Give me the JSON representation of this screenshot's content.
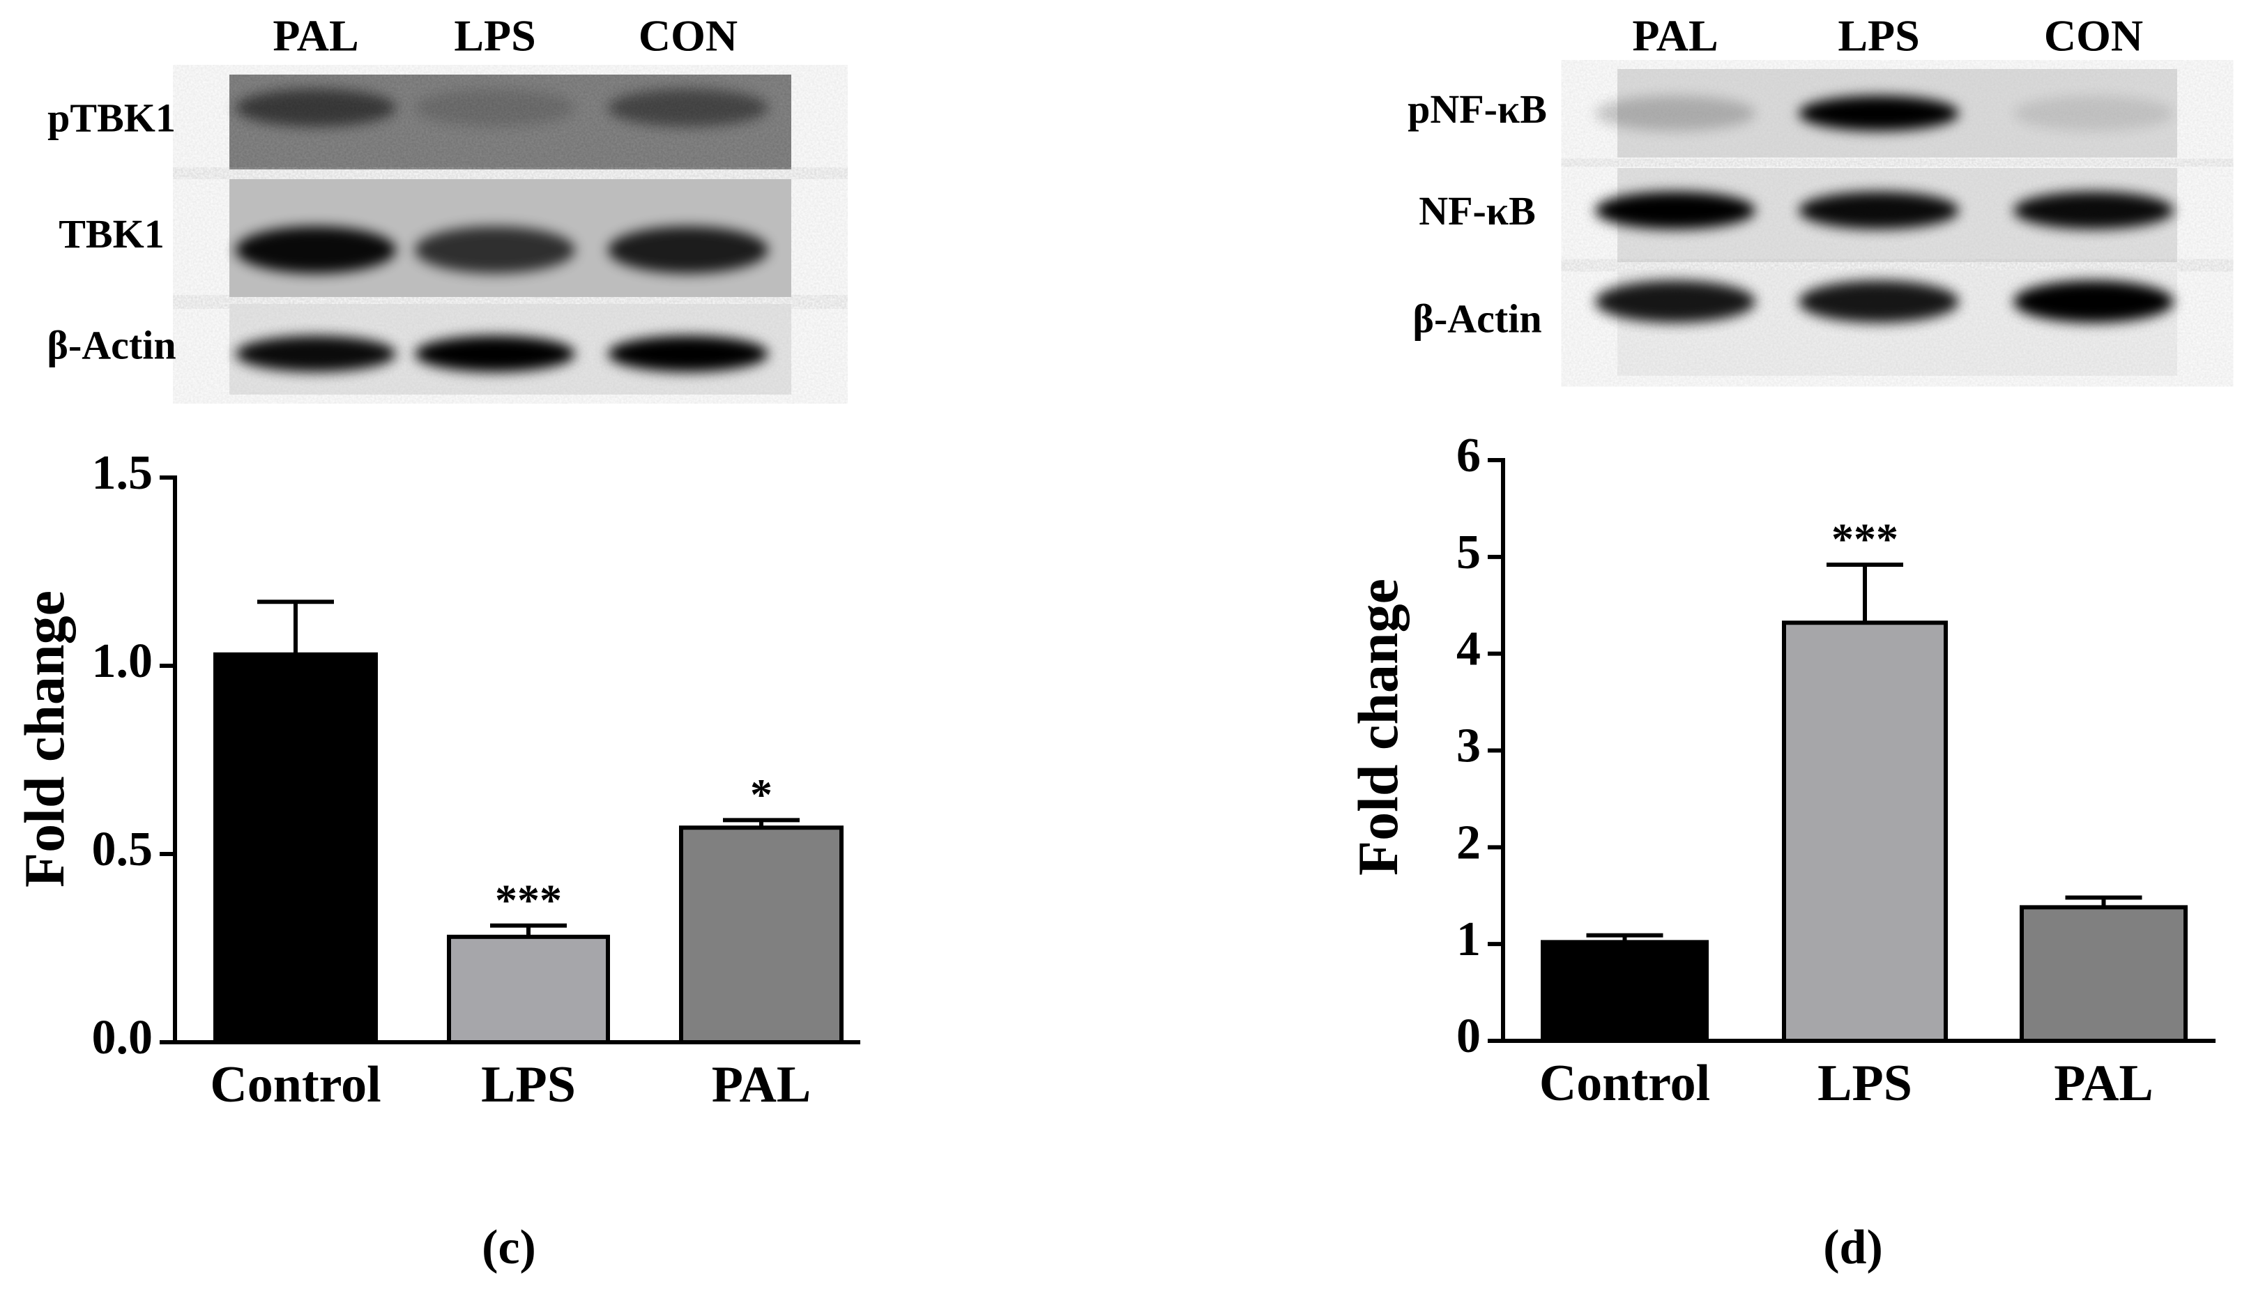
{
  "chart_data": [
    {
      "type": "bar",
      "panel_label": "(c)",
      "blot": {
        "lanes": [
          "PAL",
          "LPS",
          "CON"
        ],
        "rows": [
          "pTBK1",
          "TBK1",
          "β-Actin"
        ]
      },
      "y_label": "Fold change",
      "categories": [
        "Control",
        "LPS",
        "PAL"
      ],
      "values": [
        1.03,
        0.28,
        0.57
      ],
      "errors": [
        0.14,
        0.03,
        0.02
      ],
      "significance": [
        null,
        "***",
        "*"
      ],
      "colors": [
        "#000000",
        "#a6a6aa",
        "#808080"
      ],
      "ylim": [
        0,
        1.5
      ],
      "yticks": [
        {
          "value": 0,
          "label": "0.0"
        },
        {
          "value": 0.5,
          "label": "0.5"
        },
        {
          "value": 1,
          "label": "1.0"
        },
        1.5
      ]
    },
    {
      "type": "bar",
      "panel_label": "(d)",
      "blot": {
        "lanes": [
          "PAL",
          "LPS",
          "CON"
        ],
        "rows": [
          "pNF-κB",
          "NF-κB",
          "β-Actin"
        ]
      },
      "y_label": "Fold change",
      "categories": [
        "Control",
        "LPS",
        "PAL"
      ],
      "values": [
        1.02,
        4.32,
        1.38
      ],
      "errors": [
        0.07,
        0.6,
        0.1
      ],
      "significance": [
        null,
        "***",
        null
      ],
      "colors": [
        "#000000",
        "#a6a6a9",
        "#808080"
      ],
      "ylim": [
        0,
        6
      ],
      "yticks": [
        0,
        1,
        2,
        3,
        4,
        5,
        6
      ]
    }
  ]
}
